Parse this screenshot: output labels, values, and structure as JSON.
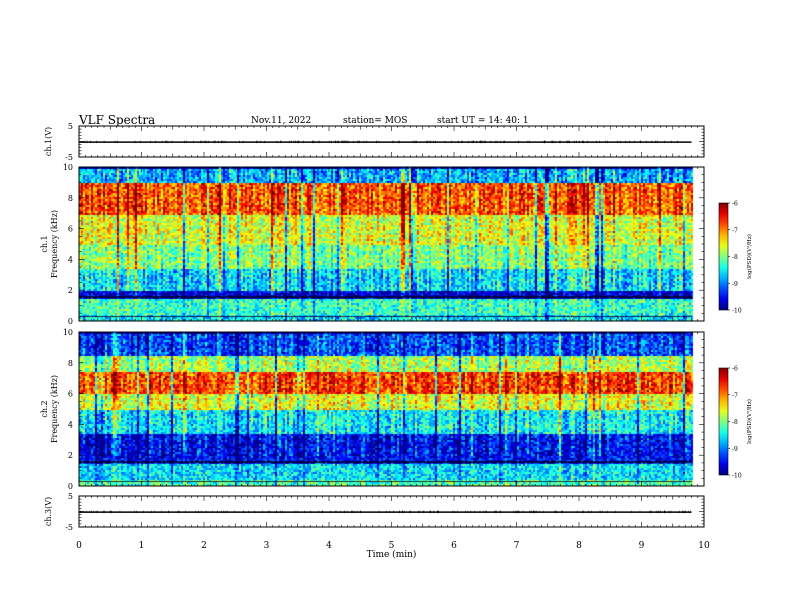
{
  "header": {
    "title": "VLF Spectra",
    "date": "Nov.11, 2022",
    "station": "station= MOS",
    "start_ut": "start  UT =   14: 40: 1"
  },
  "chart_data": [
    {
      "type": "line",
      "name": "ch1-waveform",
      "ylabel": "ch.1(V)",
      "xlim": [
        0,
        10
      ],
      "ylim": [
        -5,
        5
      ],
      "yticks": [
        "5",
        "-5"
      ],
      "series": [
        {
          "values": [
            -0.2,
            -0.2
          ]
        }
      ]
    },
    {
      "type": "heatmap",
      "name": "ch1-spectrogram",
      "ylabel": "ch.1\nFrequency (kHz)",
      "xlim": [
        0,
        10
      ],
      "ylim": [
        0,
        10
      ],
      "yticks": [
        "0",
        "2",
        "4",
        "6",
        "8",
        "10"
      ],
      "data_end_min": 9.8,
      "colorbar": {
        "label": "log(PSD)(V²/Hz)",
        "min": -10,
        "max": -6,
        "ticks": [
          "-6",
          "-7",
          "-8",
          "-9",
          "-10"
        ]
      },
      "bands_khz": [
        {
          "from": 0,
          "to": 0.5,
          "level": -8.6
        },
        {
          "from": 0.5,
          "to": 1.5,
          "level": -8.3
        },
        {
          "from": 1.5,
          "to": 2.0,
          "level": -9.7
        },
        {
          "from": 2.0,
          "to": 3.5,
          "level": -8.6
        },
        {
          "from": 3.5,
          "to": 5.0,
          "level": -8.0
        },
        {
          "from": 5.0,
          "to": 7.0,
          "level": -7.6
        },
        {
          "from": 7.0,
          "to": 9.0,
          "level": -6.8
        },
        {
          "from": 9.0,
          "to": 10.0,
          "level": -8.8
        }
      ]
    },
    {
      "type": "heatmap",
      "name": "ch2-spectrogram",
      "ylabel": "ch.2\nFrequency (kHz)",
      "xlim": [
        0,
        10
      ],
      "ylim": [
        0,
        10
      ],
      "yticks": [
        "0",
        "2",
        "4",
        "6",
        "8",
        "10"
      ],
      "data_end_min": 9.8,
      "colorbar": {
        "label": "log(PSD)(V²/Hz)",
        "min": -10,
        "max": -6,
        "ticks": [
          "-6",
          "-7",
          "-8",
          "-9",
          "-10"
        ]
      },
      "bands_khz": [
        {
          "from": 0,
          "to": 0.5,
          "level": -8.2
        },
        {
          "from": 0.5,
          "to": 1.5,
          "level": -8.6
        },
        {
          "from": 1.5,
          "to": 3.5,
          "level": -9.5
        },
        {
          "from": 3.5,
          "to": 5.0,
          "level": -8.5
        },
        {
          "from": 5.0,
          "to": 6.0,
          "level": -7.6
        },
        {
          "from": 6.0,
          "to": 7.5,
          "level": -6.7
        },
        {
          "from": 7.5,
          "to": 8.5,
          "level": -7.8
        },
        {
          "from": 8.5,
          "to": 10.0,
          "level": -9.2
        }
      ]
    },
    {
      "type": "line",
      "name": "ch3-waveform",
      "ylabel": "ch.3(V)",
      "xlim": [
        0,
        10
      ],
      "ylim": [
        -5,
        5
      ],
      "yticks": [
        "5",
        "-5"
      ],
      "series": [
        {
          "values": [
            -0.2,
            -0.2
          ]
        }
      ]
    }
  ],
  "xaxis": {
    "label": "Time (min)",
    "ticks": [
      "0",
      "1",
      "2",
      "3",
      "4",
      "5",
      "6",
      "7",
      "8",
      "9",
      "10"
    ]
  },
  "colors": {
    "frame": "#000000",
    "background": "#ffffff"
  }
}
